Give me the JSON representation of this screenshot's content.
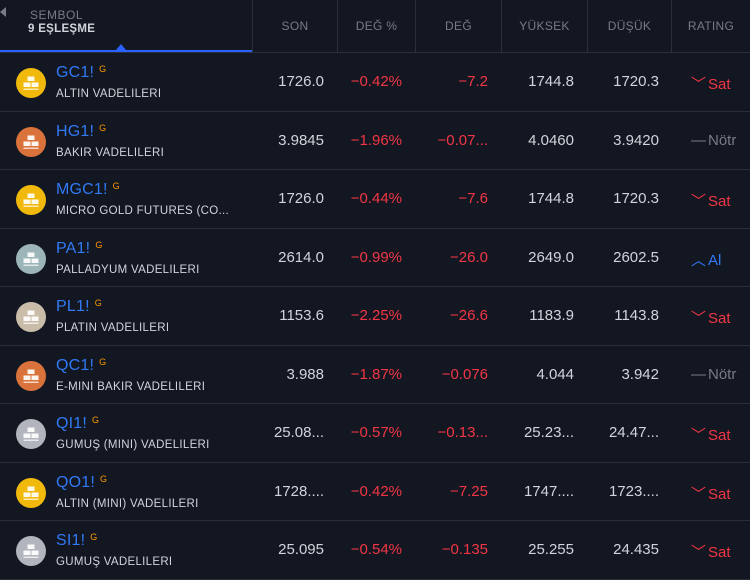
{
  "header": {
    "symbol_label": "SEMBOL",
    "match_count": "9 EŞLEŞME",
    "columns": {
      "son": "SON",
      "deg_pct": "DEĞ %",
      "deg": "DEĞ",
      "yuksek": "YÜKSEK",
      "dusuk": "DÜŞÜK",
      "rating": "RATING"
    }
  },
  "colors": {
    "sell": "#f23645",
    "buy": "#3179f5",
    "neutral": "#787b86",
    "gold": "#f0b90b",
    "copper": "#d9733b",
    "silver": "#b2b5be",
    "palladium": "#9bb5b8",
    "platinum": "#c9bca9"
  },
  "rows": [
    {
      "ticker": "GC1!",
      "badge": "G",
      "desc": "ALTIN VADELILERI",
      "logo": "gold-bars-icon",
      "son": "1726.0",
      "deg_pct": "−0.42%",
      "deg": "−7.2",
      "yuksek": "1744.8",
      "dusuk": "1720.3",
      "rating": "Sat",
      "rating_icon": "﹀",
      "rating_type": "sell"
    },
    {
      "ticker": "HG1!",
      "badge": "G",
      "desc": "BAKIR VADELILERI",
      "logo": "copper-bars-icon",
      "son": "3.9845",
      "deg_pct": "−1.96%",
      "deg": "−0.07...",
      "yuksek": "4.0460",
      "dusuk": "3.9420",
      "rating": "Nötr",
      "rating_icon": "—",
      "rating_type": "neutral"
    },
    {
      "ticker": "MGC1!",
      "badge": "G",
      "desc": "MICRO GOLD FUTURES (CO...",
      "logo": "gold-bars-icon",
      "son": "1726.0",
      "deg_pct": "−0.44%",
      "deg": "−7.6",
      "yuksek": "1744.8",
      "dusuk": "1720.3",
      "rating": "Sat",
      "rating_icon": "﹀",
      "rating_type": "sell"
    },
    {
      "ticker": "PA1!",
      "badge": "G",
      "desc": "PALLADYUM VADELILERI",
      "logo": "palladium-bars-icon",
      "son": "2614.0",
      "deg_pct": "−0.99%",
      "deg": "−26.0",
      "yuksek": "2649.0",
      "dusuk": "2602.5",
      "rating": "Al",
      "rating_icon": "︿",
      "rating_type": "buy"
    },
    {
      "ticker": "PL1!",
      "badge": "G",
      "desc": "PLATIN VADELILERI",
      "logo": "platinum-bars-icon",
      "son": "1153.6",
      "deg_pct": "−2.25%",
      "deg": "−26.6",
      "yuksek": "1183.9",
      "dusuk": "1143.8",
      "rating": "Sat",
      "rating_icon": "﹀",
      "rating_type": "sell"
    },
    {
      "ticker": "QC1!",
      "badge": "G",
      "desc": "E-MINI BAKIR VADELILERI",
      "logo": "copper-bars-icon",
      "son": "3.988",
      "deg_pct": "−1.87%",
      "deg": "−0.076",
      "yuksek": "4.044",
      "dusuk": "3.942",
      "rating": "Nötr",
      "rating_icon": "—",
      "rating_type": "neutral"
    },
    {
      "ticker": "QI1!",
      "badge": "G",
      "desc": "GÜMÜŞ (MINI) VADELILERI",
      "logo": "silver-bars-icon",
      "son": "25.08...",
      "deg_pct": "−0.57%",
      "deg": "−0.13...",
      "yuksek": "25.23...",
      "dusuk": "24.47...",
      "rating": "Sat",
      "rating_icon": "﹀",
      "rating_type": "sell"
    },
    {
      "ticker": "QO1!",
      "badge": "G",
      "desc": "ALTIN (MINI) VADELILERI",
      "logo": "gold-bars-icon",
      "son": "1728....",
      "deg_pct": "−0.42%",
      "deg": "−7.25",
      "yuksek": "1747....",
      "dusuk": "1723....",
      "rating": "Sat",
      "rating_icon": "﹀",
      "rating_type": "sell"
    },
    {
      "ticker": "SI1!",
      "badge": "G",
      "desc": "GÜMÜŞ VADELILERI",
      "logo": "silver-bars-icon",
      "son": "25.095",
      "deg_pct": "−0.54%",
      "deg": "−0.135",
      "yuksek": "25.255",
      "dusuk": "24.435",
      "rating": "Sat",
      "rating_icon": "﹀",
      "rating_type": "sell"
    }
  ]
}
